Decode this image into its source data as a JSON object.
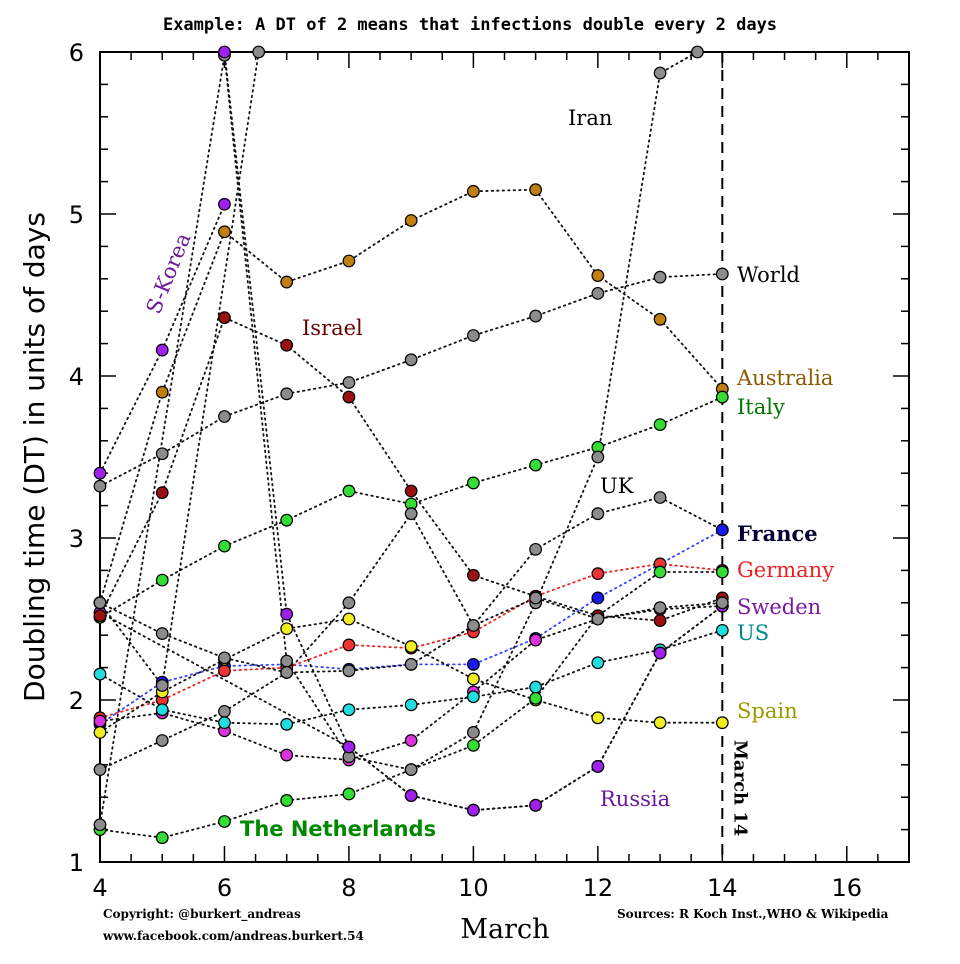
{
  "chart_data": {
    "type": "line",
    "title": "Example: A DT of 2 means that infections double every 2 days",
    "xlabel": "March",
    "ylabel": "Doubling time (DT) in units of days",
    "xlim": [
      4,
      17
    ],
    "ylim": [
      1,
      6
    ],
    "xticks": [
      4,
      6,
      8,
      10,
      12,
      14,
      16
    ],
    "yticks": [
      1,
      2,
      3,
      4,
      5,
      6
    ],
    "grid": false,
    "marker": {
      "x": 14,
      "label": "March 14",
      "style": "dashed"
    },
    "series": [
      {
        "name": "World",
        "color": "#8c8c8c",
        "label_color": "#000000",
        "line": "dotted",
        "x": [
          4,
          5,
          6,
          7,
          8,
          9,
          10,
          11,
          12,
          13,
          14
        ],
        "y": [
          3.32,
          3.52,
          3.75,
          3.89,
          3.96,
          4.1,
          4.25,
          4.37,
          4.51,
          4.61,
          4.63
        ]
      },
      {
        "name": "Australia",
        "color": "#c07f10",
        "label_color": "#8b5a00",
        "line": "dotted",
        "x": [
          4,
          5,
          6,
          7,
          8,
          9,
          10,
          11,
          12,
          13,
          14
        ],
        "y": [
          2.6,
          3.9,
          4.89,
          4.58,
          4.71,
          4.96,
          5.14,
          5.15,
          4.62,
          4.35,
          3.92
        ]
      },
      {
        "name": "Italy",
        "color": "#33dd33",
        "label_color": "#007700",
        "line": "dotted",
        "x": [
          4,
          5,
          6,
          7,
          8,
          9,
          10,
          11,
          12,
          13,
          14
        ],
        "y": [
          2.51,
          2.74,
          2.95,
          3.11,
          3.29,
          3.21,
          3.34,
          3.45,
          3.56,
          3.7,
          3.87
        ]
      },
      {
        "name": "UK",
        "color": "#8c8c8c",
        "label_color": "#000000",
        "line": "dotted",
        "x": [
          4,
          5,
          6,
          7,
          8,
          9,
          10,
          11,
          12,
          13,
          14
        ],
        "y": [
          1.57,
          1.75,
          1.93,
          2.17,
          2.6,
          3.15,
          2.46,
          2.93,
          3.15,
          3.25,
          3.05
        ]
      },
      {
        "name": "France",
        "color": "#1a1aee",
        "label_color": "#000033",
        "line": "dotted",
        "line_color": "#3344ff",
        "x": [
          4,
          5,
          6,
          7,
          8,
          9,
          10,
          11,
          12,
          13,
          14
        ],
        "y": [
          1.85,
          2.11,
          2.21,
          2.22,
          2.19,
          2.22,
          2.22,
          2.38,
          2.63,
          2.84,
          3.05
        ]
      },
      {
        "name": "Germany",
        "color": "#ee3333",
        "label_color": "#ee2222",
        "line": "dotted",
        "line_color": "#ee2222",
        "x": [
          4,
          5,
          6,
          7,
          8,
          9,
          10,
          11,
          12,
          13,
          14
        ],
        "y": [
          1.89,
          2.0,
          2.18,
          2.2,
          2.34,
          2.32,
          2.42,
          2.64,
          2.78,
          2.84,
          2.8
        ]
      },
      {
        "name": "Sweden",
        "color": "#dd33dd",
        "label_color": "#7a1aa0",
        "line": "dotted",
        "x": [
          4,
          5,
          6,
          7,
          8,
          9,
          10,
          11,
          12,
          13,
          14
        ],
        "y": [
          1.87,
          1.92,
          1.81,
          1.66,
          1.63,
          1.75,
          2.05,
          2.37,
          2.5,
          2.56,
          2.58
        ]
      },
      {
        "name": "US",
        "color": "#22dddd",
        "label_color": "#008888",
        "line": "dotted",
        "x": [
          4,
          5,
          6,
          7,
          8,
          9,
          10,
          11,
          12,
          13,
          14
        ],
        "y": [
          2.16,
          1.94,
          1.86,
          1.85,
          1.94,
          1.97,
          2.02,
          2.08,
          2.23,
          2.31,
          2.43
        ]
      },
      {
        "name": "Spain",
        "color": "#eeee22",
        "label_color": "#999900",
        "line": "dotted",
        "x": [
          4,
          5,
          6,
          7,
          8,
          9,
          10,
          11,
          12,
          13,
          14
        ],
        "y": [
          1.8,
          2.05,
          2.25,
          2.44,
          2.5,
          2.33,
          2.13,
          2.0,
          1.89,
          1.86,
          1.86
        ]
      },
      {
        "name": "Russia",
        "color": "#bb22ee",
        "label_color": "#6a1aa0",
        "line": "dotted",
        "x": [
          4,
          8,
          9,
          10,
          11,
          12,
          13,
          14
        ],
        "y": [
          2.54,
          1.71,
          1.41,
          1.32,
          1.35,
          1.59,
          2.29,
          2.58
        ]
      },
      {
        "name": "The Netherlands",
        "color": "#33dd33",
        "label_color": "#008800",
        "line": "dotted",
        "x": [
          4,
          5,
          6,
          7,
          8,
          9,
          10,
          11,
          12,
          13,
          14
        ],
        "y": [
          1.2,
          1.15,
          1.25,
          1.38,
          1.42,
          1.57,
          1.72,
          2.01,
          2.52,
          2.79,
          2.79
        ]
      },
      {
        "name": "Israel",
        "color": "#991111",
        "label_color": "#660000",
        "line": "dotted",
        "x": [
          4,
          5,
          6,
          7,
          8,
          9,
          10,
          11,
          12,
          13,
          14
        ],
        "y": [
          2.52,
          3.28,
          4.36,
          4.19,
          3.87,
          3.29,
          2.77,
          2.64,
          2.52,
          2.49,
          2.63
        ]
      },
      {
        "name": "Iran",
        "color": "#8c8c8c",
        "label_color": "#000000",
        "line": "dotted",
        "x": [
          4,
          6,
          7,
          8,
          9,
          10,
          11,
          12,
          13,
          13.6
        ],
        "y": [
          1.23,
          5.98,
          2.24,
          1.65,
          1.57,
          1.8,
          2.6,
          3.5,
          5.87,
          6.0
        ]
      },
      {
        "name": "S-Korea",
        "color": "#a020f0",
        "label_color": "#6a1a9a",
        "line": "dotted",
        "x": [
          4,
          5,
          6
        ],
        "y": [
          3.4,
          4.16,
          5.06
        ]
      },
      {
        "name": "",
        "color": "#a020f0",
        "line": "dotted",
        "x": [
          6,
          7,
          8,
          9,
          10,
          11,
          12,
          13,
          14
        ],
        "y": [
          6.0,
          2.53,
          1.71,
          1.41,
          1.32,
          1.35,
          1.59,
          2.29,
          2.58
        ]
      },
      {
        "name": "",
        "color": "#8c8c8c",
        "line": "dotted",
        "x": [
          4,
          5,
          6,
          7,
          8,
          9,
          10,
          11,
          12,
          13,
          14
        ],
        "y": [
          2.6,
          2.41,
          2.26,
          2.17,
          2.18,
          2.22,
          2.46,
          2.63,
          2.5,
          2.57,
          2.6
        ]
      },
      {
        "name": "",
        "color": "#8c8c8c",
        "line": "dotted",
        "x": [
          4,
          5,
          6.55
        ],
        "y": [
          2.6,
          2.09,
          6.0
        ]
      }
    ],
    "labels": [
      {
        "text": "World",
        "series": "World"
      },
      {
        "text": "Australia",
        "series": "Australia"
      },
      {
        "text": "Italy",
        "series": "Italy"
      },
      {
        "text": "UK",
        "series": "UK"
      },
      {
        "text": "France",
        "series": "France"
      },
      {
        "text": "Germany",
        "series": "Germany"
      },
      {
        "text": "Sweden",
        "series": "Sweden"
      },
      {
        "text": "US",
        "series": "US"
      },
      {
        "text": "Spain",
        "series": "Spain"
      },
      {
        "text": "Russia",
        "series": "Russia"
      },
      {
        "text": "The Netherlands",
        "series": "The Netherlands"
      },
      {
        "text": "Israel",
        "series": "Israel"
      },
      {
        "text": "Iran",
        "series": "Iran"
      },
      {
        "text": "S-Korea",
        "series": "S-Korea"
      }
    ]
  },
  "credits": {
    "copyright": "Copyright: @burkert_andreas",
    "facebook": "www.facebook.com/andreas.burkert.54",
    "sources": "Sources: R Koch Inst.,WHO & Wikipedia"
  }
}
